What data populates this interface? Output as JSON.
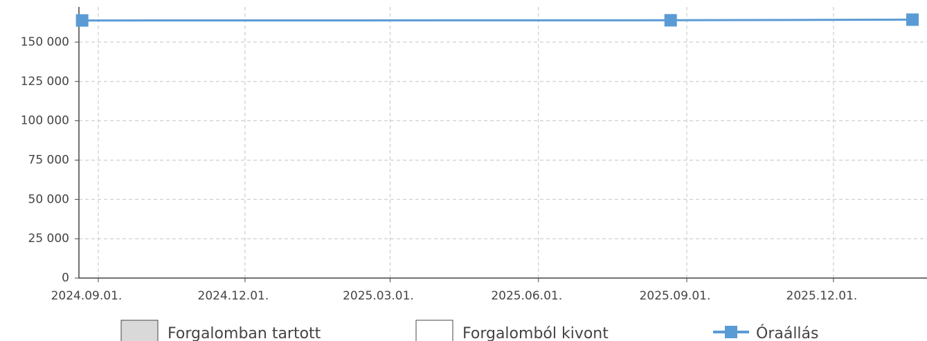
{
  "chart_data": {
    "type": "line",
    "x": [
      "2024-08-22",
      "2025-08-22",
      "2026-01-19"
    ],
    "series": [
      {
        "name": "Óraállás",
        "color": "#5b9bd5",
        "values": [
          163800,
          163900,
          164300
        ]
      }
    ],
    "legend": [
      {
        "name": "Forgalomban tartott",
        "color": "#d9d9d9"
      },
      {
        "name": "Forgalomból kivont",
        "color": "#ffffff"
      }
    ],
    "xlim": [
      "2024-08-20",
      "2026-01-28"
    ],
    "xticks": [
      {
        "value": "2024-09-01",
        "label": "2024.09.01."
      },
      {
        "value": "2024-12-01",
        "label": "2024.12.01."
      },
      {
        "value": "2025-03-01",
        "label": "2025.03.01."
      },
      {
        "value": "2025-06-01",
        "label": "2025.06.01."
      },
      {
        "value": "2025-09-01",
        "label": "2025.09.01."
      },
      {
        "value": "2025-12-01",
        "label": "2025.12.01."
      }
    ],
    "ylim": [
      0,
      172400
    ],
    "yticks": [
      0,
      {
        "value": 25000,
        "label": "25 000"
      },
      {
        "value": 50000,
        "label": "50 000"
      },
      {
        "value": 75000,
        "label": "75 000"
      },
      {
        "value": 100000,
        "label": "100 000"
      },
      {
        "value": 125000,
        "label": "125 000"
      },
      {
        "value": 150000,
        "label": "150 000"
      }
    ],
    "grid": true
  }
}
